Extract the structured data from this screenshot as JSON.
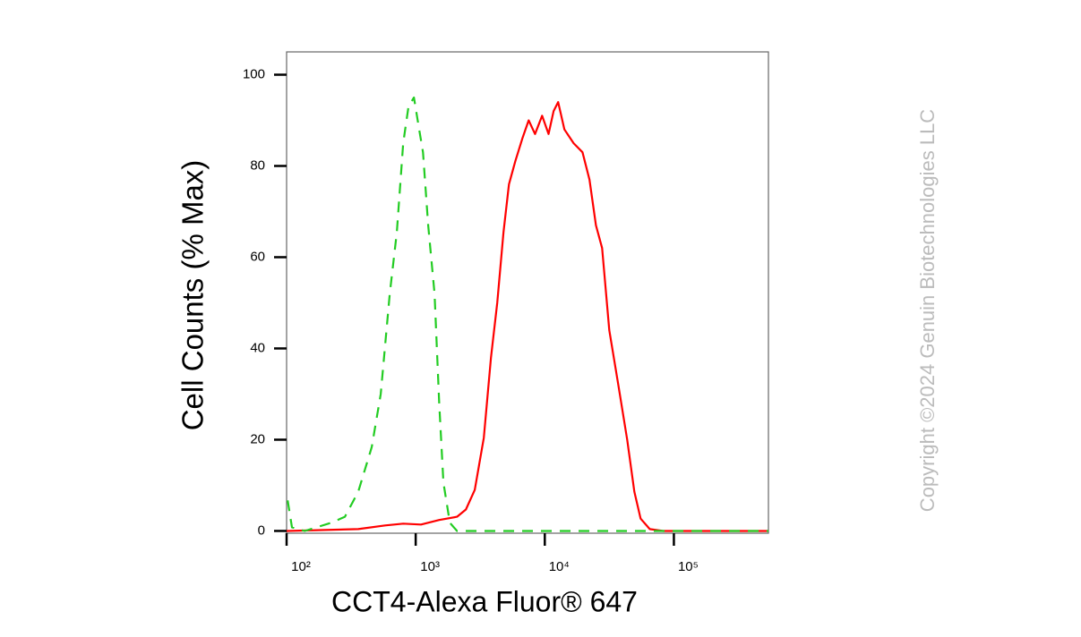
{
  "chart_data": {
    "type": "line",
    "xlabel": "CCT4-Alexa Fluor® 647",
    "ylabel": "Cell Counts (% Max)",
    "watermark": "Copyright ©2024 Genuin Biotechnologies LLC",
    "xscale": "log",
    "xlim": [
      100,
      540000
    ],
    "ylim": [
      -0.5,
      105
    ],
    "xticks": [
      {
        "value": 100,
        "label": "10²"
      },
      {
        "value": 1000,
        "label": "10³"
      },
      {
        "value": 10000,
        "label": "10⁴"
      },
      {
        "value": 100000,
        "label": "10⁵"
      }
    ],
    "yticks": [
      0,
      20,
      40,
      60,
      80,
      100
    ],
    "series": [
      {
        "color": "#ff0000",
        "linestyle": "solid",
        "x": [
          100,
          359,
          580,
          800,
          1100,
          1520,
          2090,
          2450,
          2870,
          3370,
          3830,
          4280,
          4790,
          5280,
          5900,
          6700,
          7500,
          8400,
          9530,
          10700,
          11700,
          12700,
          14200,
          16700,
          19600,
          22200,
          24900,
          27800,
          31600,
          37100,
          43500,
          49400,
          55300,
          65000,
          82600,
          540000
        ],
        "values": [
          0,
          0.4,
          1.2,
          1.6,
          1.4,
          2.4,
          3.1,
          4.7,
          9,
          20.4,
          38,
          50,
          65.5,
          76,
          81,
          86,
          90,
          87,
          91,
          87,
          92,
          94,
          88,
          85,
          83,
          77,
          67,
          62,
          44,
          32,
          20,
          8.6,
          2.7,
          0.4,
          0,
          0
        ]
      },
      {
        "color": "#22cc22",
        "linestyle": "dashed",
        "x": [
          102,
          110,
          138,
          222,
          283,
          359,
          457,
          536,
          630,
          714,
          800,
          880,
          970,
          1050,
          1140,
          1250,
          1400,
          1520,
          1640,
          1840,
          2090,
          540000
        ],
        "values": [
          6.7,
          0.8,
          0,
          1.8,
          3.1,
          8.6,
          18.4,
          30,
          52,
          65.5,
          85,
          93,
          95,
          89,
          83,
          67,
          52,
          28,
          10.6,
          1.8,
          0,
          0
        ]
      }
    ]
  }
}
